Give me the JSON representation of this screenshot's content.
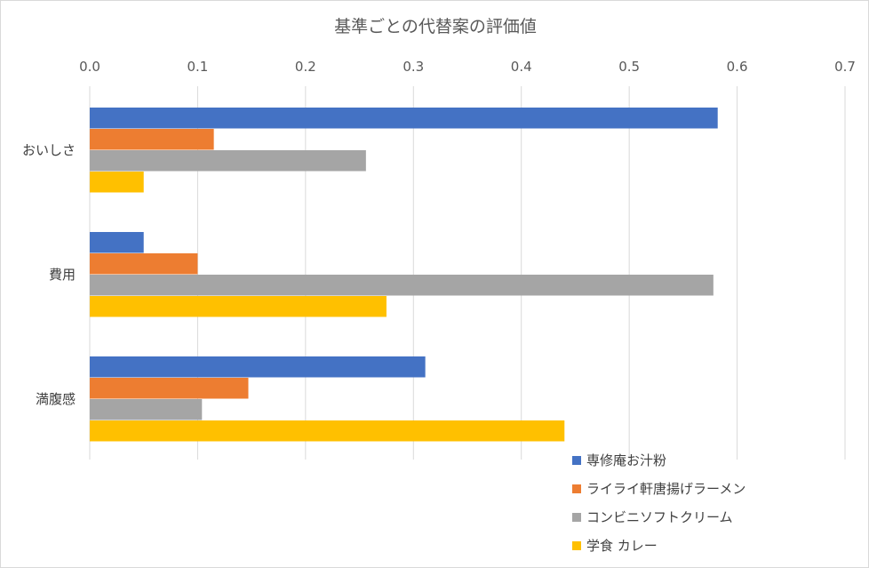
{
  "chart_data": {
    "type": "bar",
    "orientation": "horizontal",
    "title": "基準ごとの代替案の評価値",
    "xlabel": "",
    "ylabel": "",
    "xlim": [
      0,
      0.7
    ],
    "x_ticks": [
      "0.0",
      "0.1",
      "0.2",
      "0.3",
      "0.4",
      "0.5",
      "0.6",
      "0.7"
    ],
    "x_axis_position": "top",
    "grid": true,
    "legend_position": "bottom-right",
    "categories": [
      "おいしさ",
      "費用",
      "満腹感"
    ],
    "series": [
      {
        "name": "専修庵お汁粉",
        "color": "#4472C4",
        "values": [
          0.582,
          0.05,
          0.311
        ]
      },
      {
        "name": "ライライ軒唐揚げラーメン",
        "color": "#ED7D31",
        "values": [
          0.115,
          0.1,
          0.147
        ]
      },
      {
        "name": "コンビニソフトクリーム",
        "color": "#A5A5A5",
        "values": [
          0.256,
          0.578,
          0.104
        ]
      },
      {
        "name": "学食 カレー",
        "color": "#FFC000",
        "values": [
          0.05,
          0.275,
          0.44
        ]
      }
    ]
  }
}
